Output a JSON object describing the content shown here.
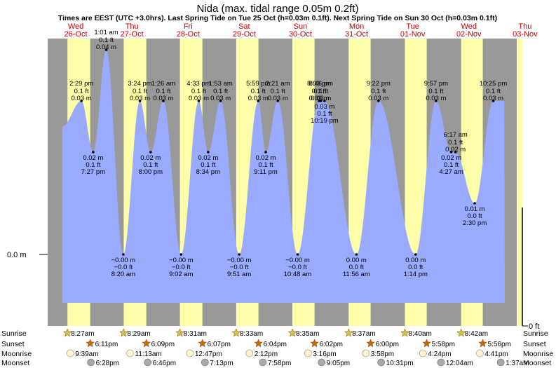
{
  "title": "Nida (max. tidal range 0.05m 0.2ft)",
  "subtitle": "Times are EEST (UTC +3.0hrs). Last Spring Tide on Tue 25 Oct (h=0.03m 0.1ft). Next Spring Tide on Sun 30 Oct (h=0.03m 0.1ft)",
  "colors": {
    "day": "#ffffaa",
    "night": "#999999",
    "tide_fill": "#99aaff",
    "weekend_label": "#cc0000",
    "weekday_label": "#000000",
    "sun_icon": "#d8c040",
    "sunset_icon": "#cc6600",
    "moon_rise": "#fff8d0",
    "moon_set": "#aaaaaa"
  },
  "chart_data": {
    "type": "area",
    "title": "Nida (max. tidal range 0.05m 0.2ft)",
    "x_unit": "days from Wed 26-Oct 00:00 EEST",
    "y_unit": "m",
    "ylim": [
      -0.01,
      0.06
    ],
    "left_axis_label": "0.0 m",
    "right_axis_label": "0 ft",
    "days": [
      {
        "dow": "Wed",
        "date": "26-Oct",
        "weekend": false
      },
      {
        "dow": "Thu",
        "date": "27-Oct",
        "weekend": false
      },
      {
        "dow": "Fri",
        "date": "28-Oct",
        "weekend": false
      },
      {
        "dow": "Sat",
        "date": "29-Oct",
        "weekend": true
      },
      {
        "dow": "Sun",
        "date": "30-Oct",
        "weekend": true
      },
      {
        "dow": "Mon",
        "date": "31-Oct",
        "weekend": false
      },
      {
        "dow": "Tue",
        "date": "01-Nov",
        "weekend": false
      },
      {
        "dow": "Wed",
        "date": "02-Nov",
        "weekend": false
      },
      {
        "dow": "Thu",
        "date": "03-Nov",
        "weekend": false
      }
    ],
    "tides": [
      {
        "t": 0.601,
        "h": 0.03,
        "time": "2:29 pm",
        "ft": "0.1 ft",
        "m": "0.03 m",
        "label_pos": "above"
      },
      {
        "t": 0.81,
        "h": 0.02,
        "time": "7:27 pm",
        "ft": "0.1 ft",
        "m": "0.02 m",
        "label_pos": "below"
      },
      {
        "t": 1.043,
        "h": 0.04,
        "time": "1:01 am",
        "ft": "0.1 ft",
        "m": "0.04 m",
        "label_pos": "above"
      },
      {
        "t": 1.347,
        "h": 0.0,
        "time": "8:20 am",
        "ft": "−0.0 ft",
        "m": "−0.00 m",
        "label_pos": "below"
      },
      {
        "t": 1.642,
        "h": 0.03,
        "time": "3:24 pm",
        "ft": "0.1 ft",
        "m": "0.03 m",
        "label_pos": "above"
      },
      {
        "t": 1.833,
        "h": 0.02,
        "time": "8:00 pm",
        "ft": "0.1 ft",
        "m": "0.02 m",
        "label_pos": "below"
      },
      {
        "t": 2.06,
        "h": 0.03,
        "time": "1:26 am",
        "ft": "0.1 ft",
        "m": "0.03 m",
        "label_pos": "above"
      },
      {
        "t": 2.376,
        "h": 0.0,
        "time": "9:02 am",
        "ft": "−0.0 ft",
        "m": "−0.00 m",
        "label_pos": "below"
      },
      {
        "t": 2.69,
        "h": 0.03,
        "time": "4:33 pm",
        "ft": "0.1 ft",
        "m": "0.03 m",
        "label_pos": "above"
      },
      {
        "t": 2.857,
        "h": 0.02,
        "time": "8:34 pm",
        "ft": "0.1 ft",
        "m": "0.02 m",
        "label_pos": "below"
      },
      {
        "t": 3.079,
        "h": 0.03,
        "time": "1:53 am",
        "ft": "0.1 ft",
        "m": "0.03 m",
        "label_pos": "above"
      },
      {
        "t": 3.41,
        "h": 0.0,
        "time": "9:51 am",
        "ft": "−0.0 ft",
        "m": "−0.00 m",
        "label_pos": "below"
      },
      {
        "t": 3.749,
        "h": 0.03,
        "time": "5:59 pm",
        "ft": "0.1 ft",
        "m": "0.03 m",
        "label_pos": "above"
      },
      {
        "t": 3.883,
        "h": 0.02,
        "time": "9:11 pm",
        "ft": "0.1 ft",
        "m": "0.02 m",
        "label_pos": "below"
      },
      {
        "t": 4.098,
        "h": 0.03,
        "time": "2:21 am",
        "ft": "0.1 ft",
        "m": "0.03 m",
        "label_pos": "above"
      },
      {
        "t": 4.45,
        "h": 0.0,
        "time": "10:48 am",
        "ft": "−0.0 ft",
        "m": "−0.00 m",
        "label_pos": "below"
      },
      {
        "t": 4.833,
        "h": 0.03,
        "time": "8:00 pm",
        "ft": "0.1 ft",
        "m": "0.03 m",
        "label_pos": "above"
      },
      {
        "t": 4.866,
        "h": 0.03,
        "time": "8:46 pm",
        "ft": "0.1 ft",
        "m": "0.03 m",
        "label_pos": "above"
      },
      {
        "t": 4.93,
        "h": 0.03,
        "time": "10:19 pm",
        "ft": "0.1 ft",
        "m": "0.03 m",
        "label_pos": "below-near"
      },
      {
        "t": 5.497,
        "h": 0.0,
        "time": "11:56 am",
        "ft": "0.0 ft",
        "m": "0.00 m",
        "label_pos": "below"
      },
      {
        "t": 5.89,
        "h": 0.03,
        "time": "9:22 pm",
        "ft": "0.1 ft",
        "m": "0.03 m",
        "label_pos": "above"
      },
      {
        "t": 6.551,
        "h": 0.0,
        "time": "1:14 pm",
        "ft": "0.0 ft",
        "m": "0.00 m",
        "label_pos": "below"
      },
      {
        "t": 6.915,
        "h": 0.03,
        "time": "9:57 pm",
        "ft": "0.1 ft",
        "m": "0.03 m",
        "label_pos": "above"
      },
      {
        "t": 7.186,
        "h": 0.02,
        "time": "4:27 am",
        "ft": "0.1 ft",
        "m": "0.02 m",
        "label_pos": "below"
      },
      {
        "t": 7.262,
        "h": 0.02,
        "time": "6:17 am",
        "ft": "0.1 ft",
        "m": "0.02 m",
        "label_pos": "above"
      },
      {
        "t": 7.604,
        "h": 0.01,
        "time": "2:30 pm",
        "ft": "0.0 ft",
        "m": "0.01 m",
        "label_pos": "below"
      },
      {
        "t": 7.934,
        "h": 0.03,
        "time": "10:25 pm",
        "ft": "0.1 ft",
        "m": "0.03 m",
        "label_pos": "above"
      }
    ]
  },
  "almanac": {
    "row_labels": [
      "Sunrise",
      "Sunset",
      "Moonrise",
      "Moonset"
    ],
    "sunrise": [
      "8:27am",
      "8:29am",
      "8:31am",
      "8:33am",
      "8:35am",
      "8:37am",
      "8:40am",
      "8:42am"
    ],
    "sunset": [
      "6:11pm",
      "6:09pm",
      "6:07pm",
      "6:04pm",
      "6:02pm",
      "6:00pm",
      "5:58pm",
      "5:56pm"
    ],
    "moonrise": [
      "9:39am",
      "11:13am",
      "12:47pm",
      "2:12pm",
      "3:16pm",
      "3:58pm",
      "4:24pm",
      "4:41pm"
    ],
    "moonset": [
      "6:28pm",
      "6:46pm",
      "7:13pm",
      "7:58pm",
      "9:05pm",
      "10:31pm",
      "12:04am",
      "1:37am"
    ]
  }
}
